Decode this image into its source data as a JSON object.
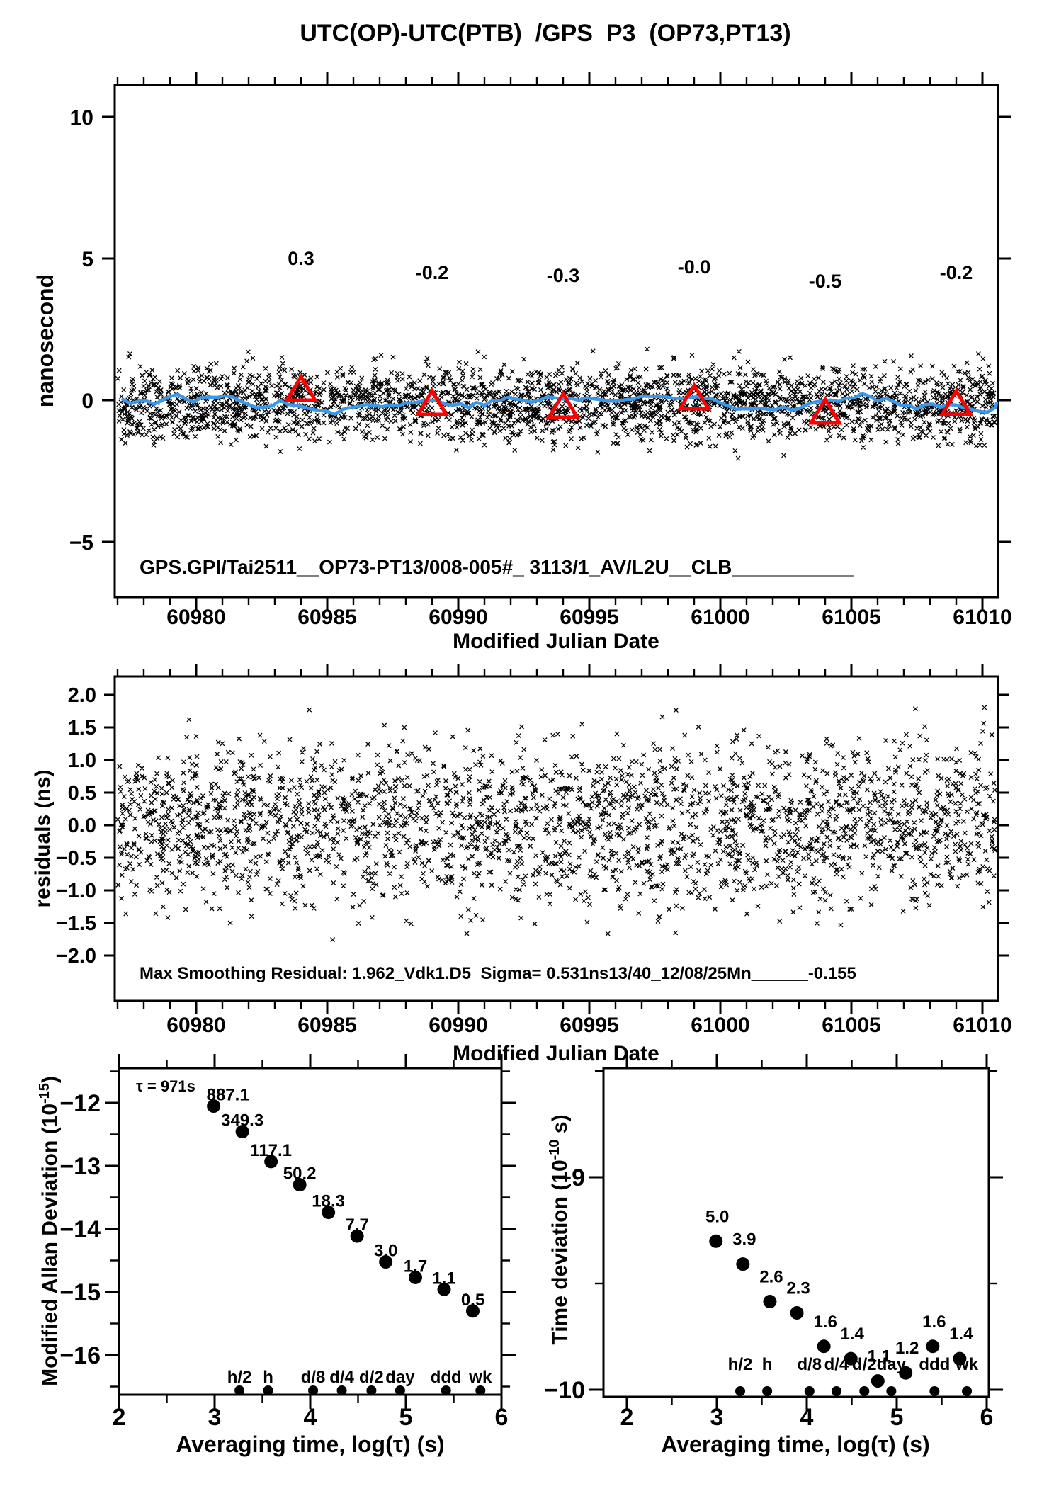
{
  "page": {
    "title": "UTC(OP)-UTC(PTB)  /GPS  P3  (OP73,PT13)"
  },
  "colors": {
    "accent_red": "#ff0000",
    "line_blue": "#3b97e8",
    "ink": "#000000",
    "paper": "#ffffff"
  },
  "chart_data": [
    {
      "id": "utc_difference",
      "type": "scatter",
      "title": "UTC(OP)-UTC(PTB)  /GPS  P3  (OP73,PT13)",
      "xlabel": "Modified Julian Date",
      "ylabel": "nanosecond",
      "xlim": [
        60976.9,
        61010.6
      ],
      "ylim": [
        -6.95,
        11.1
      ],
      "xticks": [
        60980,
        60985,
        60990,
        60995,
        61000,
        61005,
        61010
      ],
      "x_minor_step": 1,
      "yticks": [
        10,
        5,
        0,
        -5
      ],
      "grid": false,
      "annotation": "GPS.GPI/Tai2511__OP73-PT13/008-005#_ 3113/1_AV/L2U__CLB___________",
      "calibration_triangles": {
        "mjd": [
          60984,
          60989,
          60994,
          60999,
          61004,
          61009
        ],
        "values": [
          0.3,
          -0.2,
          -0.3,
          0.0,
          -0.5,
          -0.2
        ],
        "labels": [
          "0.3",
          "-0.2",
          "-0.3",
          "-0.0",
          "-0.5",
          "-0.2"
        ]
      },
      "scatter_cloud": {
        "n": 2800,
        "mean_ns": -0.12,
        "sigma_ns": 0.66,
        "ymin_ns": -2.75,
        "ymax_ns": 2.25,
        "seed": 11
      },
      "smoothing_line": {
        "present": true,
        "amplitude_ns": 0.6,
        "seed": 77
      }
    },
    {
      "id": "residuals",
      "type": "scatter",
      "xlabel": "Modified Julian Date",
      "ylabel": "residuals (ns)",
      "xlim": [
        60976.9,
        61010.6
      ],
      "ylim": [
        -2.7,
        2.27
      ],
      "xticks": [
        60980,
        60985,
        60990,
        60995,
        61000,
        61005,
        61010
      ],
      "x_minor_step": 1,
      "yticks": [
        2.0,
        1.5,
        1.0,
        0.5,
        0.0,
        -0.5,
        -1.0,
        -1.5,
        -2.0
      ],
      "grid": false,
      "annotation": "Max Smoothing Residual: 1.962_Vdk1.D5  Sigma= 0.531ns13/40_12/08/25Mn______-0.155",
      "scatter_cloud": {
        "n": 2600,
        "mean_ns": 0.02,
        "sigma_ns": 0.6,
        "ymin_ns": -2.05,
        "ymax_ns": 1.95,
        "seed": 22
      }
    },
    {
      "id": "modified_allan_deviation",
      "type": "scatter",
      "xlabel": "Averaging time, log(τ) (s)",
      "ylabel_main": "Modified Allan Deviation (10",
      "ylabel_exp": "-15",
      "ylabel_close": ")",
      "tau_note": "τ = 971s",
      "xlim": [
        2,
        6
      ],
      "ylim": [
        -16.6,
        -11.45
      ],
      "xticks": [
        2,
        3,
        4,
        5,
        6
      ],
      "yticks": [
        -12,
        -13,
        -14,
        -15,
        -16
      ],
      "log_tau": [
        2.99,
        3.29,
        3.59,
        3.89,
        4.19,
        4.49,
        4.79,
        5.1,
        5.4,
        5.7
      ],
      "values_1e15": [
        887.1,
        349.3,
        117.1,
        50.2,
        18.3,
        7.7,
        3.0,
        1.7,
        1.1,
        0.5
      ],
      "time_markers": {
        "labels": [
          "h/2",
          "h",
          "d/8",
          "d/4",
          "d/2",
          "day",
          "ddd",
          "wk"
        ],
        "log_tau": [
          3.26,
          3.56,
          4.03,
          4.33,
          4.64,
          4.94,
          5.42,
          5.78
        ]
      }
    },
    {
      "id": "time_deviation",
      "type": "scatter",
      "xlabel": "Averaging time, log(τ) (s)",
      "ylabel_main": "Time deviation (10",
      "ylabel_exp": "-10",
      "ylabel_close": " s)",
      "xlim": [
        1.74,
        6
      ],
      "ylim": [
        -10.03,
        -8.49
      ],
      "xticks": [
        2,
        3,
        4,
        5,
        6
      ],
      "yticks": [
        -9,
        -10
      ],
      "log_tau": [
        2.99,
        3.29,
        3.59,
        3.89,
        4.19,
        4.49,
        4.79,
        5.1,
        5.4,
        5.7
      ],
      "values_1e10": [
        5.0,
        3.9,
        2.6,
        2.3,
        1.6,
        1.4,
        1.1,
        1.2,
        1.6,
        1.4
      ],
      "time_markers": {
        "labels": [
          "h/2",
          "h",
          "d/8",
          "d/4",
          "d/2",
          "day",
          "ddd",
          "wk"
        ],
        "log_tau": [
          3.26,
          3.56,
          4.03,
          4.33,
          4.64,
          4.94,
          5.42,
          5.78
        ]
      }
    }
  ]
}
